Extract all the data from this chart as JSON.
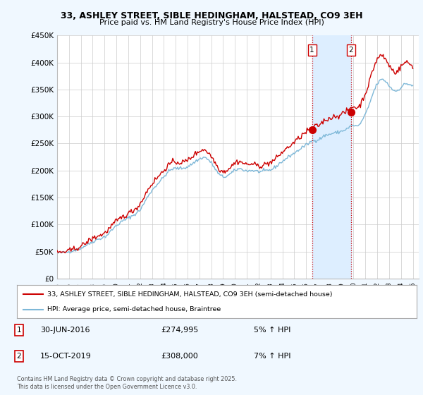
{
  "title": "33, ASHLEY STREET, SIBLE HEDINGHAM, HALSTEAD, CO9 3EH",
  "subtitle": "Price paid vs. HM Land Registry's House Price Index (HPI)",
  "ylabel_ticks": [
    "£0",
    "£50K",
    "£100K",
    "£150K",
    "£200K",
    "£250K",
    "£300K",
    "£350K",
    "£400K",
    "£450K"
  ],
  "ylim": [
    0,
    450000
  ],
  "xlim_start": 1995.0,
  "xlim_end": 2025.5,
  "xticks": [
    1995,
    1996,
    1997,
    1998,
    1999,
    2000,
    2001,
    2002,
    2003,
    2004,
    2005,
    2006,
    2007,
    2008,
    2009,
    2010,
    2011,
    2012,
    2013,
    2014,
    2015,
    2016,
    2017,
    2018,
    2019,
    2020,
    2021,
    2022,
    2023,
    2024,
    2025
  ],
  "bg_color": "#f0f8ff",
  "plot_bg_color": "#ffffff",
  "grid_color": "#cccccc",
  "hpi_color": "#7eb8d8",
  "price_color": "#cc0000",
  "vline_color": "#cc0000",
  "shade_color": "#ddeeff",
  "transaction1_x": 2016.5,
  "transaction1_y": 274995,
  "transaction1_label": "1",
  "transaction2_x": 2019.79,
  "transaction2_y": 308000,
  "transaction2_label": "2",
  "legend_line1": "33, ASHLEY STREET, SIBLE HEDINGHAM, HALSTEAD, CO9 3EH (semi-detached house)",
  "legend_line2": "HPI: Average price, semi-detached house, Braintree",
  "annotation1_date": "30-JUN-2016",
  "annotation1_price": "£274,995",
  "annotation1_hpi": "5% ↑ HPI",
  "annotation2_date": "15-OCT-2019",
  "annotation2_price": "£308,000",
  "annotation2_hpi": "7% ↑ HPI",
  "footer": "Contains HM Land Registry data © Crown copyright and database right 2025.\nThis data is licensed under the Open Government Licence v3.0."
}
